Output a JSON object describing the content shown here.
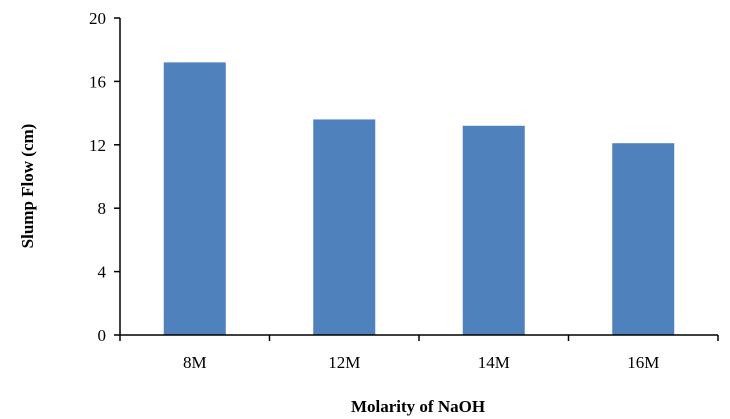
{
  "chart_data": {
    "type": "bar",
    "title": "",
    "xlabel": "Molarity of NaOH",
    "ylabel": "Slump Flow (cm)",
    "categories": [
      "8M",
      "12M",
      "14M",
      "16M"
    ],
    "values": [
      17.2,
      13.6,
      13.2,
      12.1
    ],
    "ylim": [
      0,
      20
    ],
    "yticks": [
      0,
      4,
      8,
      12,
      16,
      20
    ],
    "grid": false,
    "legend": "none",
    "bar_color": "#4f81bd"
  }
}
